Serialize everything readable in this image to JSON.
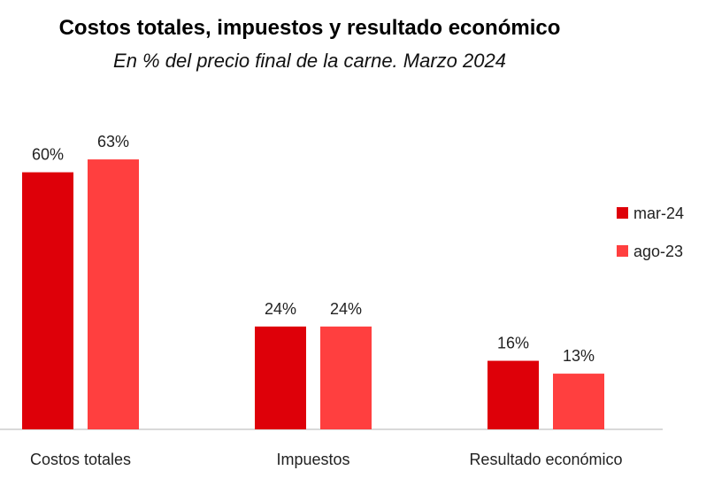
{
  "chart_data": {
    "type": "bar",
    "title": "Costos totales, impuestos y resultado económico",
    "subtitle": "En % del precio final de la carne. Marzo 2024",
    "categories": [
      "Costos totales",
      "Impuestos",
      "Resultado económico"
    ],
    "series": [
      {
        "name": "mar-24",
        "values": [
          60,
          24,
          16
        ],
        "labels": [
          "60%",
          "24%",
          "16%"
        ],
        "color": "#de0009"
      },
      {
        "name": "ago-23",
        "values": [
          63,
          24,
          13
        ],
        "labels": [
          "63%",
          "24%",
          "13%"
        ],
        "color": "#ff3f3f"
      }
    ],
    "xlabel": "",
    "ylabel": "",
    "ylim": [
      0,
      65
    ],
    "grid": false,
    "legend_position": "right"
  }
}
